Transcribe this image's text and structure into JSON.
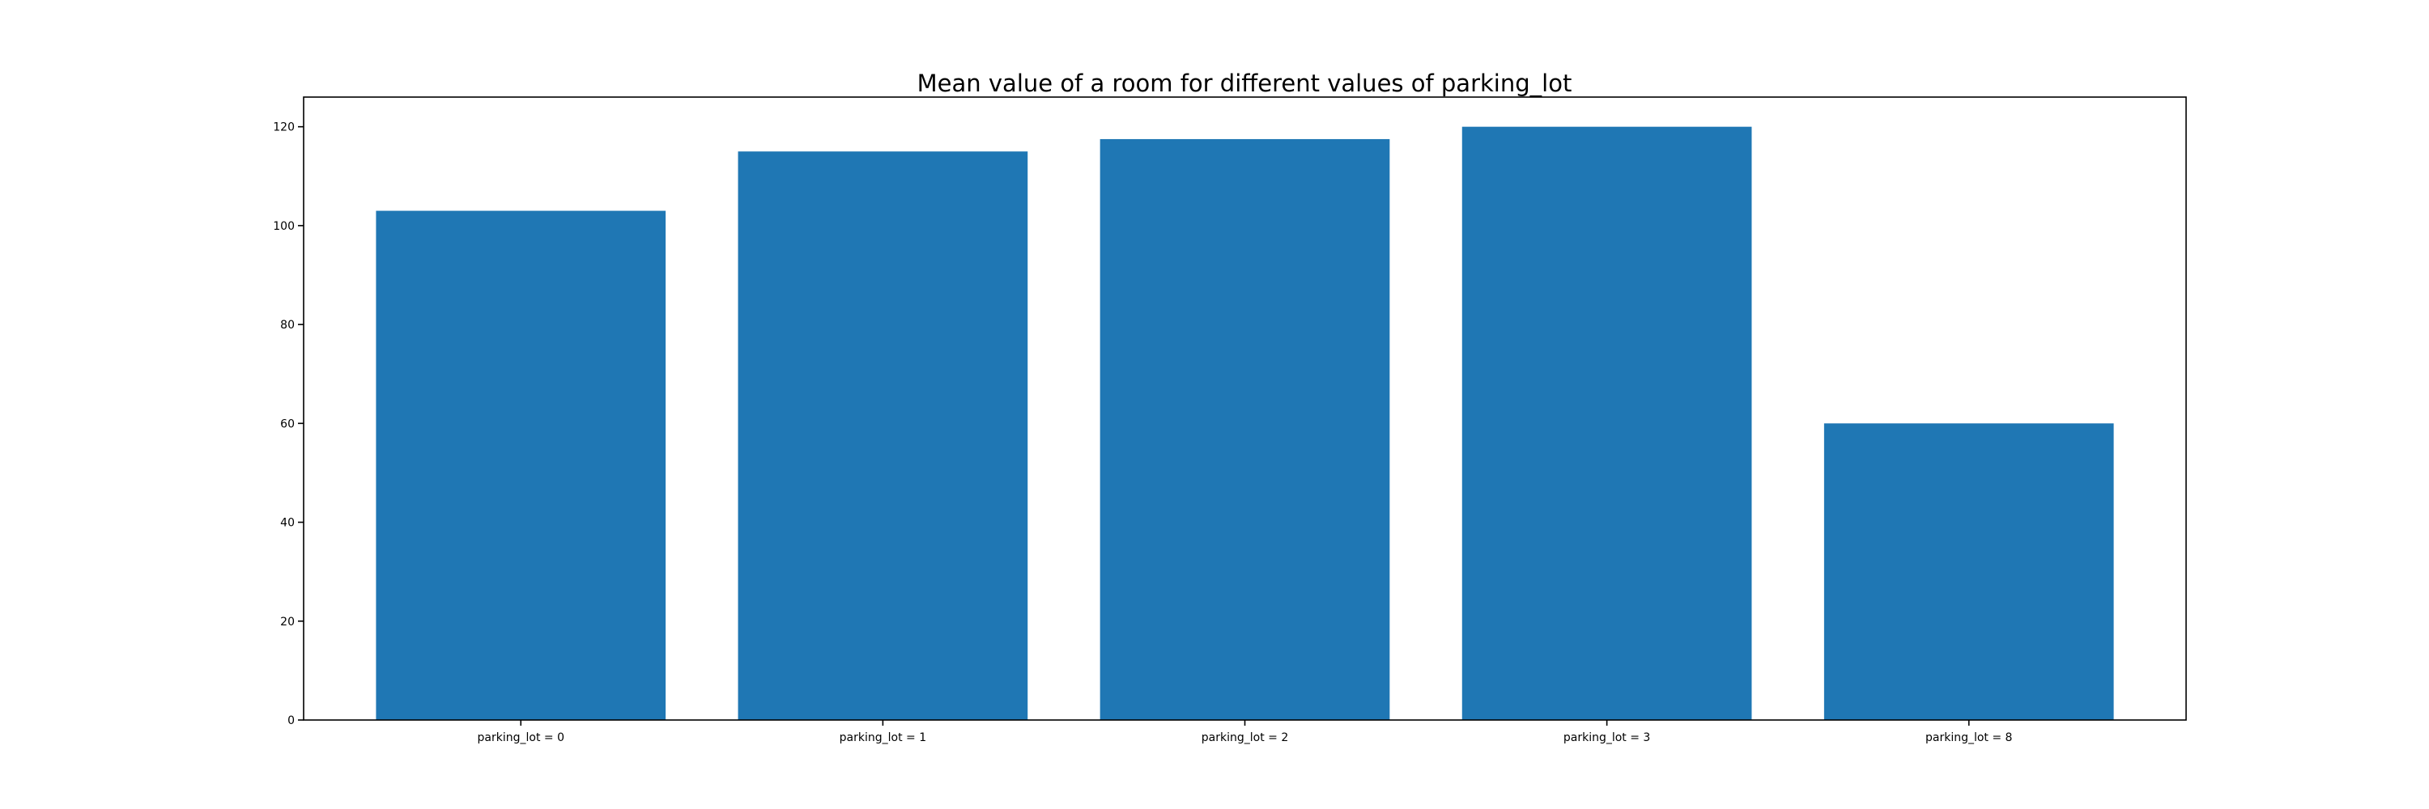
{
  "chart_data": {
    "type": "bar",
    "title": "Mean value of a room for different values of parking_lot",
    "xlabel": "",
    "ylabel": "",
    "categories": [
      "parking_lot = 0",
      "parking_lot = 1",
      "parking_lot = 2",
      "parking_lot = 3",
      "parking_lot = 8"
    ],
    "values": [
      103,
      115,
      117.5,
      120,
      60
    ],
    "ylim": [
      0,
      126
    ],
    "yticks": [
      0,
      20,
      40,
      60,
      80,
      100,
      120
    ],
    "bar_color": "#1f77b4",
    "grid": false,
    "legend": "none"
  }
}
